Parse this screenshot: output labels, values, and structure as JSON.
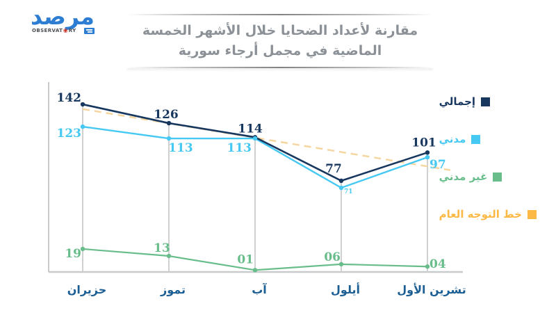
{
  "logo": {
    "wordmark": "مرصد",
    "subtext_left": "OBSERVAT",
    "subtext_o": "◉",
    "subtext_right": "RY",
    "colors": {
      "blue": "#2d7ed3",
      "red": "#c8372b"
    }
  },
  "title": {
    "line1": "مقارنة لأعداد الضحايا خلال الأشهر الخمسة",
    "line2": "الماضية في مجمل أرجاء سورية"
  },
  "legend": {
    "items": [
      {
        "label": "إجمالي",
        "color": "#17375f"
      },
      {
        "label": "مدني",
        "color": "#45c8f2"
      },
      {
        "label": "غير مدني",
        "color": "#68bd8b"
      },
      {
        "label": "خط التوجه العام",
        "color": "#fcb945"
      }
    ]
  },
  "chart_data": {
    "type": "line",
    "title": "مقارنة لأعداد الضحايا خلال الأشهر الخمسة الماضية في مجمل أرجاء سورية",
    "categories": [
      "حزيران",
      "تموز",
      "آب",
      "أيلول",
      "تشرين الأول"
    ],
    "series": [
      {
        "name": "إجمالي",
        "color": "#17375f",
        "values": [
          142,
          126,
          114,
          77,
          101
        ],
        "labels": [
          "142",
          "126",
          "114",
          "77",
          "101"
        ]
      },
      {
        "name": "مدني",
        "color": "#45c8f2",
        "values": [
          123,
          113,
          113,
          71,
          97
        ],
        "labels": [
          "123",
          "113",
          "113",
          "71",
          "97"
        ]
      },
      {
        "name": "غير مدني",
        "color": "#68bd8b",
        "values": [
          19,
          13,
          1,
          6,
          4
        ],
        "labels": [
          "19",
          "13",
          "01",
          "06",
          "04"
        ]
      }
    ],
    "trend": {
      "name": "خط التوجه العام",
      "color": "#f6d6a0",
      "start_value": 138,
      "end_value": 86,
      "style": "dashed"
    },
    "ylim": [
      0,
      160
    ],
    "grid": "vertical-per-category",
    "legend_position": "right",
    "axis_color": "#c8cacc",
    "gridline_color": "#d0d0d0",
    "month_label_color": "#1b5e94"
  }
}
